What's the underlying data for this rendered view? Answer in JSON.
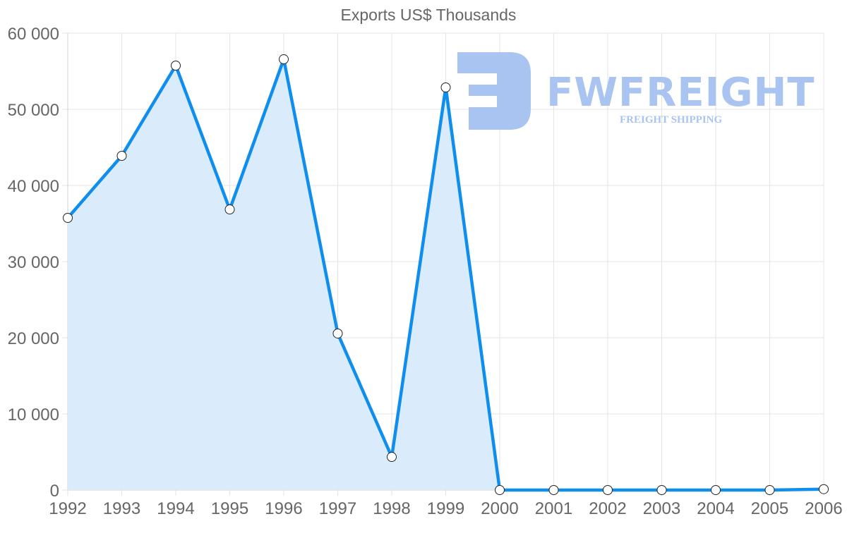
{
  "chart_data": {
    "type": "area",
    "title": "Exports US$ Thousands",
    "xlabel": "",
    "ylabel": "",
    "categories": [
      "1992",
      "1993",
      "1994",
      "1995",
      "1996",
      "1997",
      "1998",
      "1999",
      "2000",
      "2001",
      "2002",
      "2003",
      "2004",
      "2005",
      "2006"
    ],
    "series": [
      {
        "name": "Exports US$ Thousands",
        "values": [
          35740,
          43890,
          55740,
          36850,
          56570,
          20560,
          4350,
          52870,
          0,
          0,
          0,
          0,
          0,
          0,
          120
        ],
        "color": "#0f8eed",
        "fill": "#d8ebfb"
      }
    ],
    "ylim": [
      0,
      60000
    ],
    "yticks": [
      "0",
      "10 000",
      "20 000",
      "30 000",
      "40 000",
      "50 000",
      "60 000"
    ],
    "grid": true,
    "legend": "none"
  },
  "watermark": {
    "brand": "FWFREIGHT",
    "tagline": "FREIGHT SHIPPING",
    "color": "#a9c4f0"
  }
}
